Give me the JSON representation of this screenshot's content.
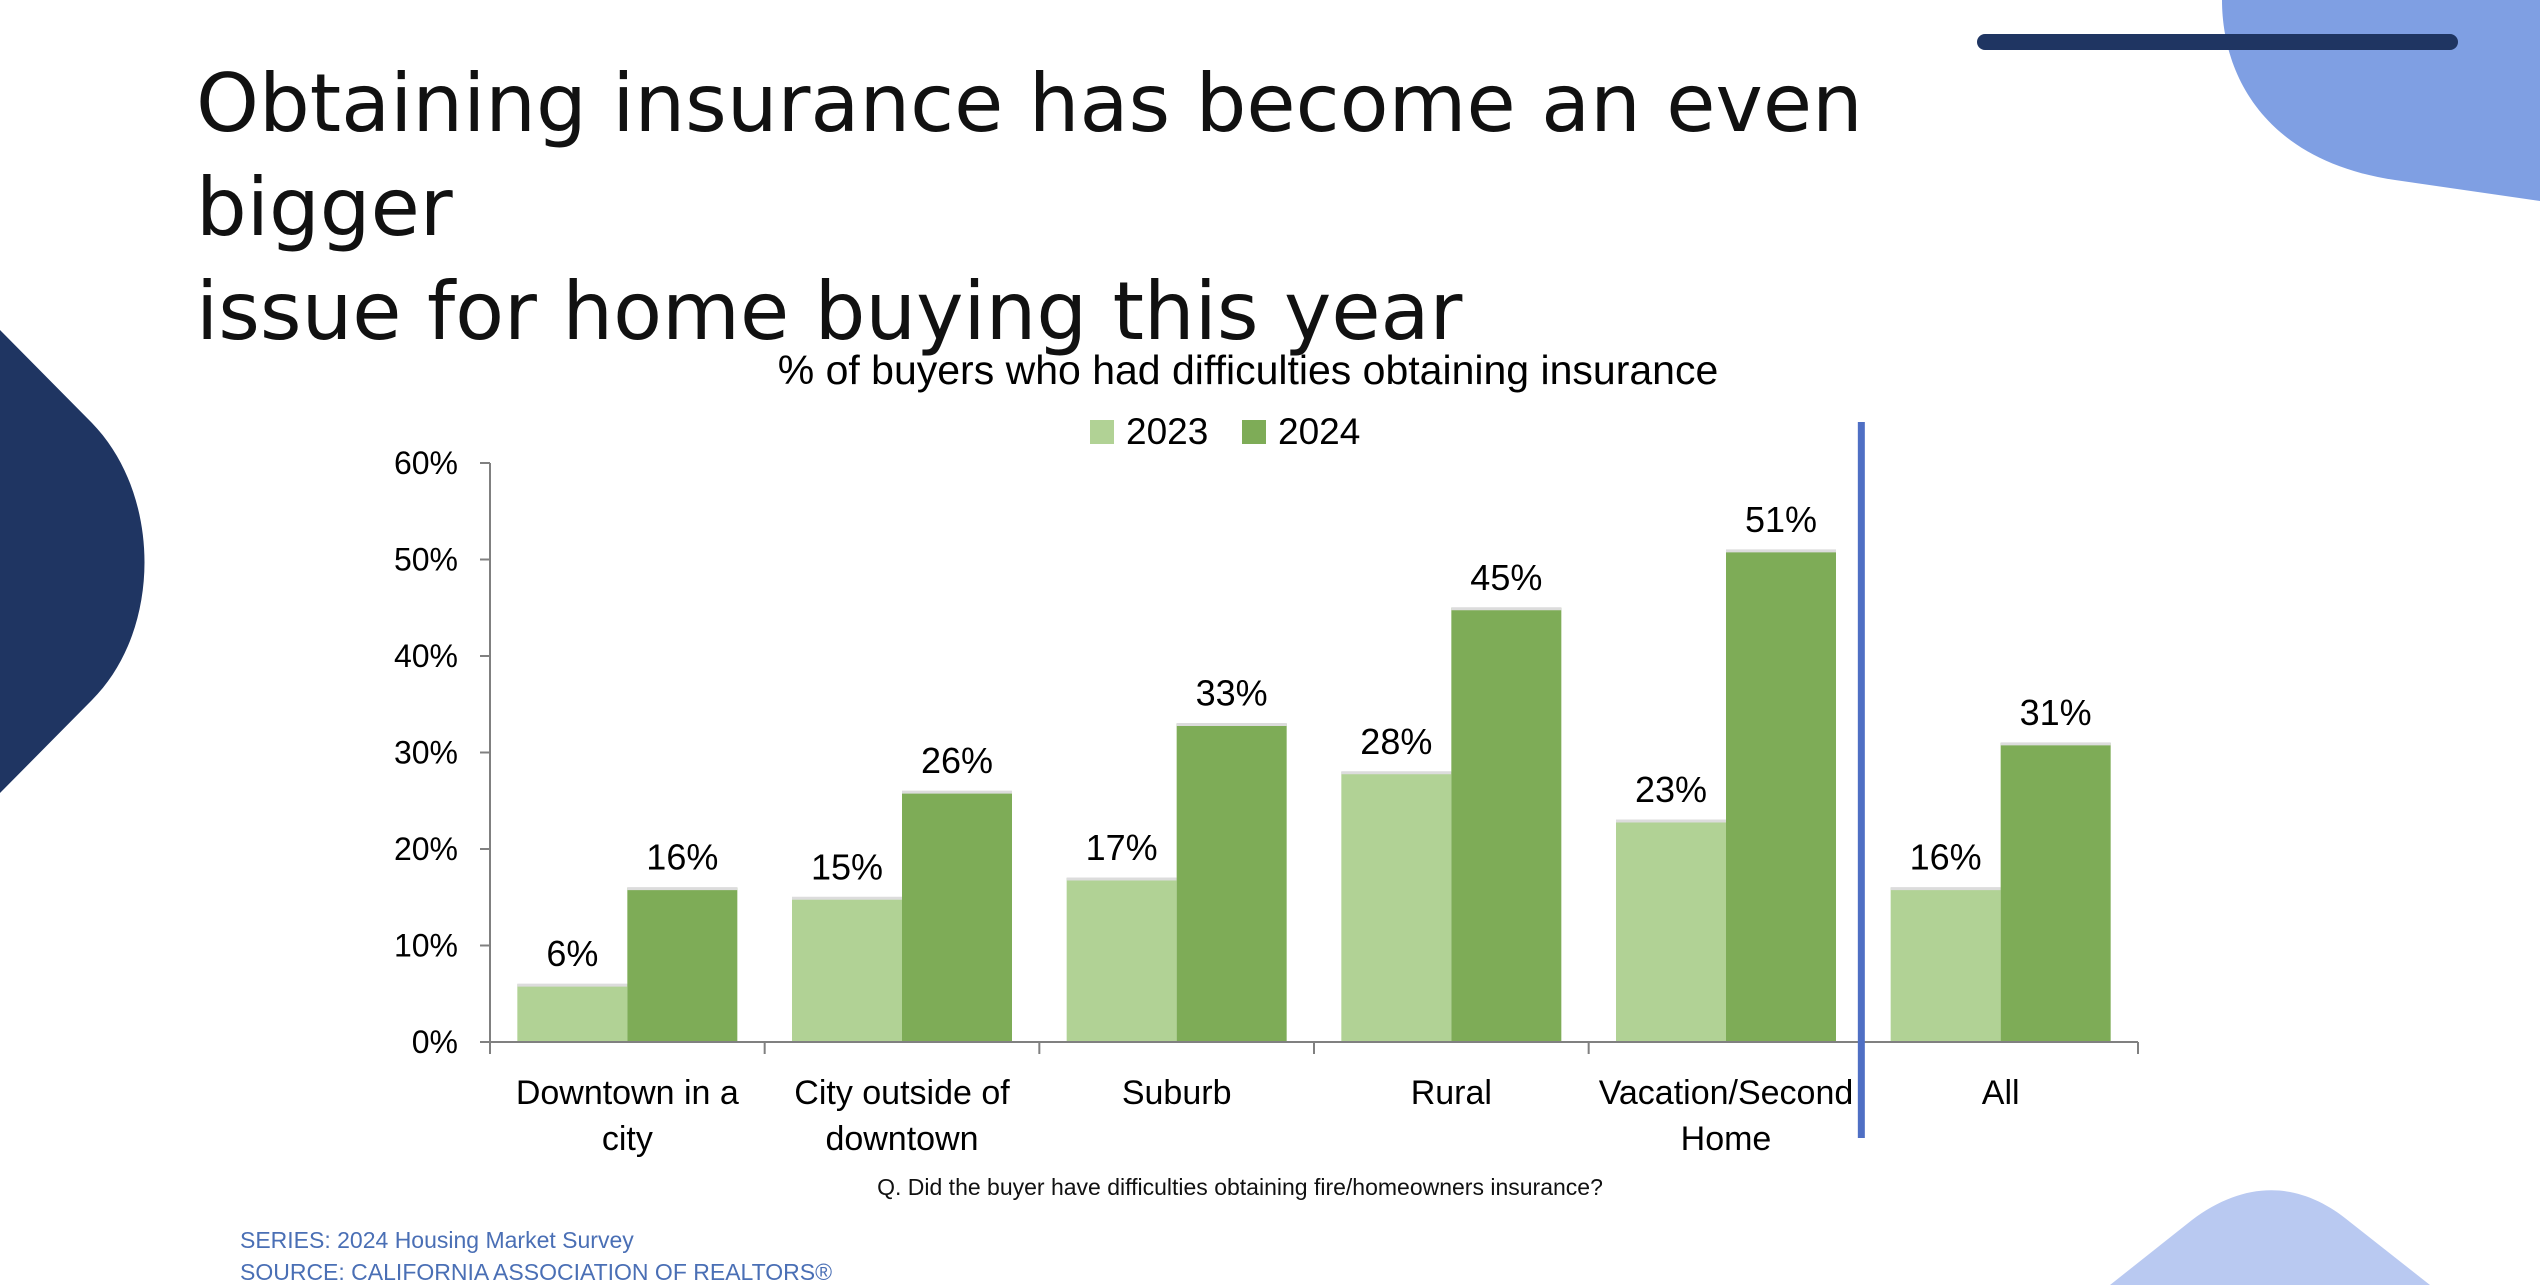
{
  "slide": {
    "title_line1": "Obtaining insurance has become an even bigger",
    "title_line2": "issue for home buying this year"
  },
  "chart_data": {
    "type": "bar",
    "title": "% of buyers who had difficulties obtaining insurance",
    "categories": [
      [
        "Downtown in a",
        "city"
      ],
      [
        "City outside of",
        "downtown"
      ],
      [
        "Suburb"
      ],
      [
        "Rural"
      ],
      [
        "Vacation/Second",
        "Home"
      ],
      [
        "All"
      ]
    ],
    "series": [
      {
        "name": "2023",
        "values": [
          6,
          15,
          17,
          28,
          23,
          16
        ],
        "labels": [
          "6%",
          "15%",
          "17%",
          "28%",
          "23%",
          "16%"
        ],
        "color": "#b1d295"
      },
      {
        "name": "2024",
        "values": [
          16,
          26,
          33,
          45,
          51,
          31
        ],
        "labels": [
          "16%",
          "26%",
          "33%",
          "45%",
          "51%",
          "31%"
        ],
        "color": "#7eac57"
      }
    ],
    "y_ticks": [
      "0%",
      "10%",
      "20%",
      "30%",
      "40%",
      "50%",
      "60%"
    ],
    "ylim": [
      0,
      60
    ],
    "grid": false,
    "legend_position": "top-center",
    "separator_before": "All",
    "separator_color": "#4f6fc4"
  },
  "question": "Q. Did the buyer have difficulties obtaining fire/homeowners insurance?",
  "footer": {
    "series": "SERIES: 2024 Housing Market Survey",
    "source": "SOURCE: CALIFORNIA ASSOCIATION OF REALTORS®"
  },
  "theme": {
    "navy": "#1f3562",
    "blue": "#7f9fe3",
    "light_blue": "#b9c9f1"
  }
}
